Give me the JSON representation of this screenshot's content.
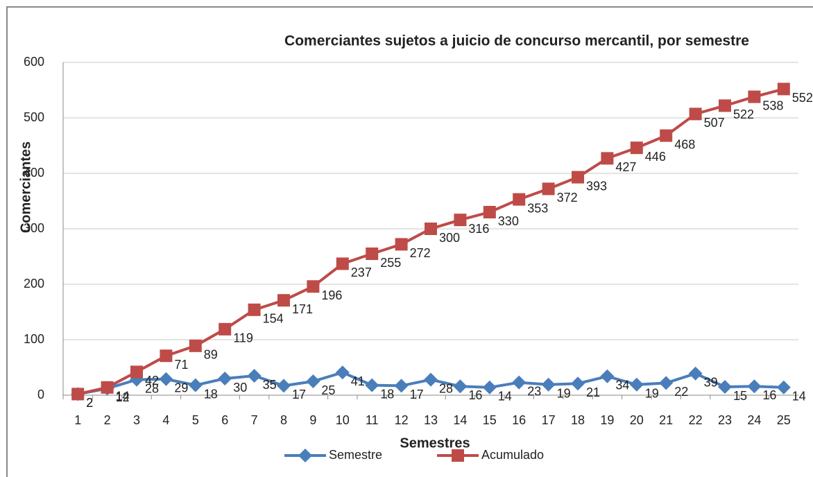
{
  "chart_data": {
    "type": "line",
    "title": "Comerciantes sujetos a juicio de concurso mercantil, por semestre",
    "x_label": "Semestres",
    "y_label": "Comerciantes",
    "categories": [
      "1",
      "2",
      "3",
      "4",
      "5",
      "6",
      "7",
      "8",
      "9",
      "10",
      "11",
      "12",
      "13",
      "14",
      "15",
      "16",
      "17",
      "18",
      "19",
      "20",
      "21",
      "22",
      "23",
      "24",
      "25"
    ],
    "series": [
      {
        "name": "Semestre",
        "color": "#4a7ebb",
        "marker": "diamond",
        "values": [
          2,
          12,
          28,
          29,
          18,
          30,
          35,
          17,
          25,
          41,
          18,
          17,
          28,
          16,
          14,
          23,
          19,
          21,
          34,
          19,
          22,
          39,
          15,
          16,
          14
        ]
      },
      {
        "name": "Acumulado",
        "color": "#be4b48",
        "marker": "square",
        "values": [
          2,
          14,
          42,
          71,
          89,
          119,
          154,
          171,
          196,
          237,
          255,
          272,
          300,
          316,
          330,
          353,
          372,
          393,
          427,
          446,
          468,
          507,
          522,
          538,
          552
        ]
      }
    ],
    "ylim": [
      0,
      600
    ],
    "yticks": [
      0,
      100,
      200,
      300,
      400,
      500,
      600
    ],
    "grid": true,
    "legend": "bottom"
  }
}
